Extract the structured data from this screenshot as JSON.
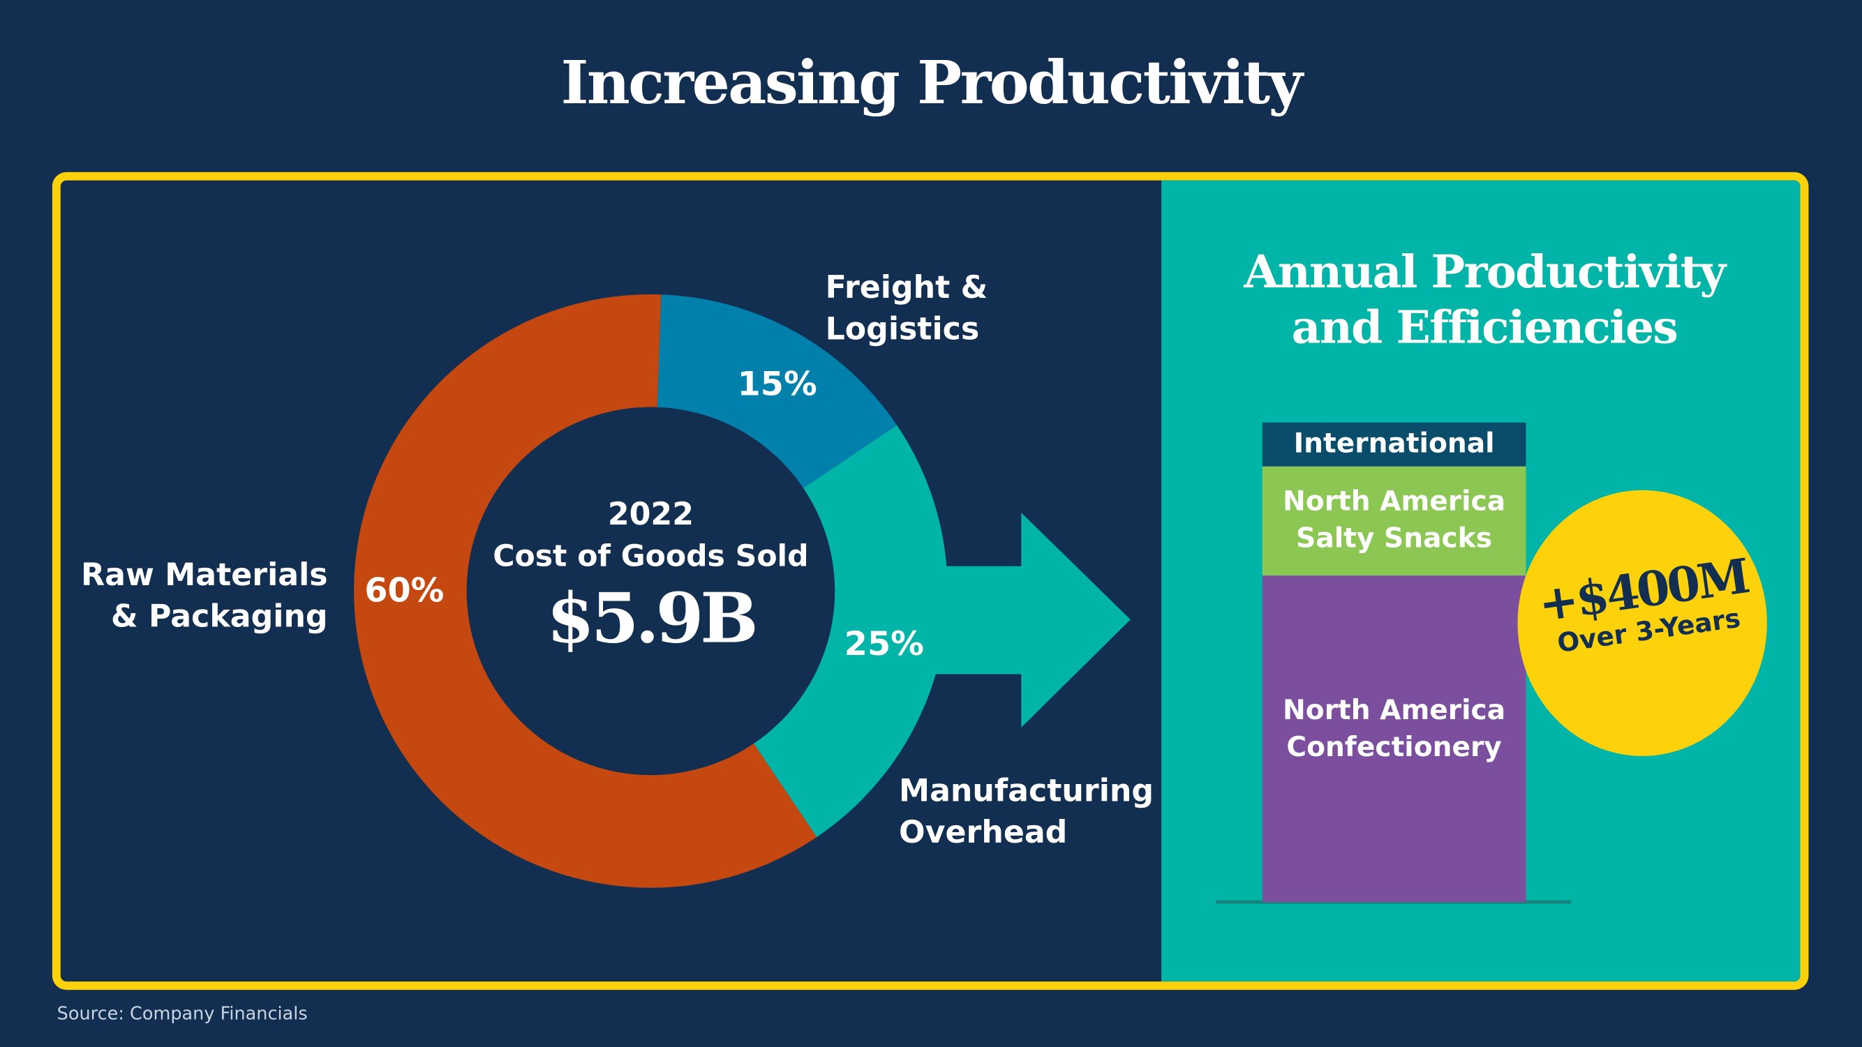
{
  "title": "Increasing Productivity",
  "colors": {
    "background": "#122f51",
    "frame": "#fdd20b",
    "teal": "#00b5a7",
    "raw": "#c4480f",
    "freight": "#0280ac",
    "manufacturing": "#00b5a7",
    "international": "#0a4d6b",
    "salty": "#8cc653",
    "confectionery": "#7b4f9e",
    "badge": "#fdd20b"
  },
  "donut": {
    "year": "2022",
    "center_label": "Cost of Goods Sold",
    "total": "$5.9B"
  },
  "chart_data": {
    "type": "pie",
    "variant": "donut",
    "categories": [
      "Freight & Logistics",
      "Manufacturing Overhead",
      "Raw Materials & Packaging"
    ],
    "values": [
      15,
      25,
      60
    ],
    "value_labels": [
      "15%",
      "25%",
      "60%"
    ],
    "label_lines": [
      [
        "Freight &",
        "Logistics"
      ],
      [
        "Manufacturing",
        "Overhead"
      ],
      [
        "Raw Materials",
        "& Packaging"
      ]
    ]
  },
  "right_panel": {
    "title_line1": "Annual Productivity",
    "title_line2": "and Efficiencies",
    "stack": [
      {
        "line1": "International",
        "line2": ""
      },
      {
        "line1": "North America",
        "line2": "Salty Snacks"
      },
      {
        "line1": "North America",
        "line2": "Confectionery"
      }
    ],
    "badge_value": "+$400M",
    "badge_sub": "Over 3-Years"
  },
  "source": "Source:  Company Financials"
}
